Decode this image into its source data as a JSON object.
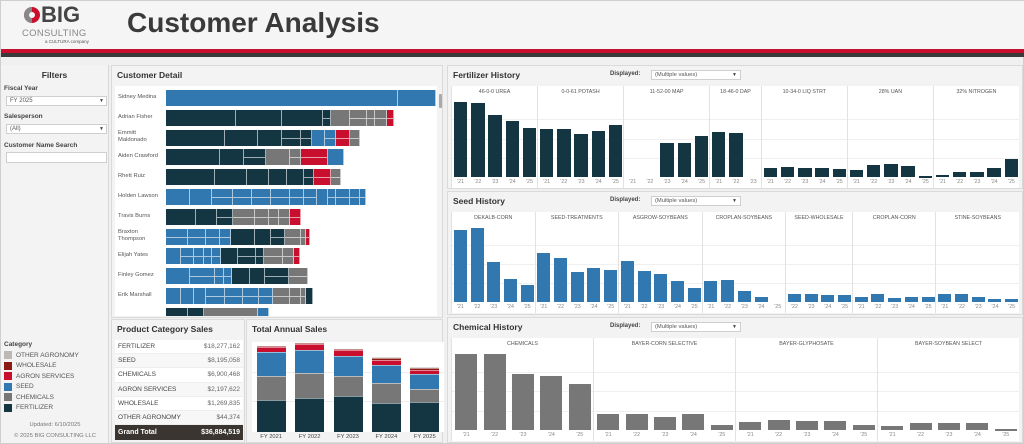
{
  "header": {
    "logo_big": "BIG",
    "logo_consulting": "CONSULTING",
    "logo_tagline": "a CULTURA company",
    "title": "Customer Analysis"
  },
  "filters": {
    "title": "Filters",
    "fiscal_year_label": "Fiscal Year",
    "fiscal_year_value": "FY 2025",
    "salesperson_label": "Salesperson",
    "salesperson_value": "(All)",
    "customer_search_label": "Customer Name Search",
    "customer_search_value": "",
    "legend_title": "Category",
    "legend": [
      {
        "label": "OTHER AGRONOMY",
        "color": "#bcb8b5"
      },
      {
        "label": "WHOLESALE",
        "color": "#8b1a14"
      },
      {
        "label": "AGRON SERVICES",
        "color": "#c8102e"
      },
      {
        "label": "SEED",
        "color": "#3178b0"
      },
      {
        "label": "CHEMICALS",
        "color": "#777777"
      },
      {
        "label": "FERTILIZER",
        "color": "#143642"
      }
    ],
    "updated": "Updated: 6/10/2025",
    "copyright": "© 2025 BIG CONSULTING LLC"
  },
  "colors": {
    "fertilizer": "#143642",
    "chemicals": "#777777",
    "seed": "#3178b0",
    "agron_services": "#c8102e",
    "wholesale": "#8b1a14",
    "other_agronomy": "#bcb8b5"
  },
  "customer_detail": {
    "title": "Customer Detail",
    "customers": [
      {
        "name": "Sidney Medina",
        "segments": [
          [
            "seed",
            0.86,
            0
          ],
          [
            "seed",
            0.14,
            0
          ]
        ]
      },
      {
        "name": "Adrian Fisher",
        "segments": [
          [
            "fertilizer",
            0.26,
            0
          ],
          [
            "fertilizer",
            0.17,
            0
          ],
          [
            "fertilizer",
            0.15,
            0
          ],
          [
            "fertilizer",
            0.03,
            1
          ],
          [
            "chemicals",
            0.07,
            0
          ],
          [
            "chemicals",
            0.065,
            1
          ],
          [
            "chemicals",
            0.03,
            1
          ],
          [
            "chemicals",
            0.045,
            1
          ],
          [
            "agron_services",
            0.025,
            1
          ]
        ]
      },
      {
        "name": "Emmitt Maldonado",
        "segments": [
          [
            "fertilizer",
            0.22,
            0
          ],
          [
            "fertilizer",
            0.12,
            0
          ],
          [
            "fertilizer",
            0.09,
            0
          ],
          [
            "fertilizer",
            0.07,
            1
          ],
          [
            "fertilizer",
            0.04,
            1
          ],
          [
            "seed",
            0.05,
            0
          ],
          [
            "seed",
            0.04,
            1
          ],
          [
            "agron_services",
            0.05,
            1
          ],
          [
            "chemicals",
            0.04,
            1
          ]
        ]
      },
      {
        "name": "Aiden Crawford",
        "segments": [
          [
            "fertilizer",
            0.2,
            0
          ],
          [
            "fertilizer",
            0.09,
            0
          ],
          [
            "fertilizer",
            0.08,
            1
          ],
          [
            "chemicals",
            0.09,
            0
          ],
          [
            "chemicals",
            0.04,
            1
          ],
          [
            "agron_services",
            0.1,
            1
          ],
          [
            "seed",
            0.06,
            0
          ]
        ]
      },
      {
        "name": "Rhett Ruiz",
        "segments": [
          [
            "fertilizer",
            0.18,
            0
          ],
          [
            "fertilizer",
            0.12,
            0
          ],
          [
            "fertilizer",
            0.08,
            0
          ],
          [
            "fertilizer",
            0.07,
            0
          ],
          [
            "fertilizer",
            0.06,
            0
          ],
          [
            "fertilizer",
            0.04,
            1
          ],
          [
            "agron_services",
            0.06,
            1
          ],
          [
            "chemicals",
            0.04,
            1
          ]
        ]
      },
      {
        "name": "Holden Lawson",
        "segments": [
          [
            "seed",
            0.09,
            0
          ],
          [
            "seed",
            0.08,
            0
          ],
          [
            "seed",
            0.08,
            1
          ],
          [
            "seed",
            0.07,
            1
          ],
          [
            "seed",
            0.07,
            1
          ],
          [
            "seed",
            0.07,
            1
          ],
          [
            "seed",
            0.05,
            1
          ],
          [
            "seed",
            0.05,
            1
          ],
          [
            "seed",
            0.04,
            0
          ],
          [
            "seed",
            0.03,
            1
          ],
          [
            "seed",
            0.05,
            1
          ],
          [
            "seed",
            0.04,
            1
          ],
          [
            "seed",
            0.02,
            1
          ]
        ]
      },
      {
        "name": "Travis Burns",
        "segments": [
          [
            "fertilizer",
            0.11,
            0
          ],
          [
            "fertilizer",
            0.08,
            0
          ],
          [
            "fertilizer",
            0.06,
            1
          ],
          [
            "chemicals",
            0.08,
            1
          ],
          [
            "chemicals",
            0.05,
            1
          ],
          [
            "chemicals",
            0.04,
            1
          ],
          [
            "chemicals",
            0.04,
            1
          ],
          [
            "agron_services",
            0.04,
            1
          ]
        ]
      },
      {
        "name": "Braxton Thompson",
        "segments": [
          [
            "seed",
            0.08,
            1
          ],
          [
            "seed",
            0.07,
            1
          ],
          [
            "seed",
            0.05,
            1
          ],
          [
            "seed",
            0.04,
            1
          ],
          [
            "fertilizer",
            0.09,
            0
          ],
          [
            "fertilizer",
            0.06,
            0
          ],
          [
            "fertilizer",
            0.05,
            1
          ],
          [
            "chemicals",
            0.06,
            1
          ],
          [
            "chemicals",
            0.02,
            1
          ],
          [
            "agron_services",
            0.015,
            1
          ]
        ]
      },
      {
        "name": "Elijah Yates",
        "segments": [
          [
            "seed",
            0.055,
            0
          ],
          [
            "seed",
            0.05,
            1
          ],
          [
            "seed",
            0.035,
            1
          ],
          [
            "seed",
            0.03,
            1
          ],
          [
            "seed",
            0.035,
            1
          ],
          [
            "fertilizer",
            0.06,
            0
          ],
          [
            "fertilizer",
            0.07,
            1
          ],
          [
            "fertilizer",
            0.03,
            1
          ],
          [
            "chemicals",
            0.07,
            1
          ],
          [
            "chemicals",
            0.04,
            1
          ],
          [
            "agron_services",
            0.02,
            1
          ]
        ]
      },
      {
        "name": "Finley Gomez",
        "segments": [
          [
            "seed",
            0.09,
            0
          ],
          [
            "seed",
            0.09,
            1
          ],
          [
            "seed",
            0.035,
            1
          ],
          [
            "seed",
            0.03,
            1
          ],
          [
            "fertilizer",
            0.065,
            0
          ],
          [
            "fertilizer",
            0.055,
            0
          ],
          [
            "fertilizer",
            0.09,
            1
          ],
          [
            "chemicals",
            0.07,
            1
          ]
        ]
      },
      {
        "name": "Erik Marshall",
        "segments": [
          [
            "seed",
            0.055,
            0
          ],
          [
            "seed",
            0.05,
            0
          ],
          [
            "seed",
            0.045,
            0
          ],
          [
            "seed",
            0.07,
            1
          ],
          [
            "seed",
            0.065,
            1
          ],
          [
            "seed",
            0.06,
            1
          ],
          [
            "seed",
            0.05,
            1
          ],
          [
            "chemicals",
            0.065,
            1
          ],
          [
            "chemicals",
            0.04,
            1
          ],
          [
            "chemicals",
            0.02,
            1
          ],
          [
            "fertilizer",
            0.025,
            0
          ]
        ]
      }
    ]
  },
  "product_category": {
    "title": "Product Category Sales",
    "rows": [
      {
        "category": "FERTILIZER",
        "value": "$18,277,162"
      },
      {
        "category": "SEED",
        "value": "$8,195,058"
      },
      {
        "category": "CHEMICALS",
        "value": "$6,900,468"
      },
      {
        "category": "AGRON SERVICES",
        "value": "$2,197,622"
      },
      {
        "category": "WHOLESALE",
        "value": "$1,269,835"
      },
      {
        "category": "OTHER AGRONOMY",
        "value": "$44,374"
      }
    ],
    "total_label": "Grand Total",
    "total_value": "$36,884,519"
  },
  "chart_data": [
    {
      "type": "bar",
      "title": "Total Annual Sales",
      "stacked": true,
      "categories": [
        "FY 2021",
        "FY 2022",
        "FY 2023",
        "FY 2024",
        "FY 2025"
      ],
      "series": [
        {
          "name": "FERTILIZER",
          "key": "fertilizer",
          "values": [
            43,
            46,
            48,
            39,
            40
          ]
        },
        {
          "name": "CHEMICALS",
          "key": "chemicals",
          "values": [
            32,
            33,
            27,
            27,
            17
          ]
        },
        {
          "name": "SEED",
          "key": "seed",
          "values": [
            32,
            31,
            27,
            24,
            20
          ]
        },
        {
          "name": "AGRON SERVICES",
          "key": "agron_services",
          "values": [
            7,
            7,
            7,
            6,
            6
          ]
        },
        {
          "name": "WHOLESALE",
          "key": "wholesale",
          "values": [
            1,
            1,
            1,
            3,
            2
          ]
        },
        {
          "name": "OTHER AGRONOMY",
          "key": "other_agronomy",
          "values": [
            0,
            0,
            0,
            1,
            1
          ]
        }
      ],
      "ylim": [
        0,
        120
      ],
      "grid": true
    },
    {
      "type": "bar",
      "title": "Fertilizer History",
      "displayed_label": "Displayed:",
      "displayed_value": "(Multiple values)",
      "color_key": "fertilizer",
      "ylim": [
        0,
        100
      ],
      "panels": [
        {
          "name": "46-0-0 UREA",
          "x": [
            "'21",
            "'22",
            "'23",
            "'24",
            "'25"
          ],
          "values": [
            98,
            96,
            81,
            73,
            63
          ]
        },
        {
          "name": "0-0-61 POTASH",
          "x": [
            "'21",
            "'22",
            "'23",
            "'24",
            "'25"
          ],
          "values": [
            62,
            62,
            56,
            60,
            68
          ]
        },
        {
          "name": "11-52-00 MAP",
          "x": [
            "'21",
            "'22",
            "'23",
            "'24",
            "'25"
          ],
          "values": [
            0,
            0,
            44,
            44,
            53
          ]
        },
        {
          "name": "18-46-0 DAP",
          "x": [
            "'21",
            "'22",
            "'23"
          ],
          "values": [
            58,
            57,
            0
          ]
        },
        {
          "name": "10-34-0 LIQ STRT",
          "x": [
            "'21",
            "'22",
            "'23",
            "'24",
            "'25"
          ],
          "values": [
            12,
            13,
            12,
            12,
            11
          ]
        },
        {
          "name": "28% UAN",
          "x": [
            "'21",
            "'22",
            "'23",
            "'24",
            "'25"
          ],
          "values": [
            9,
            16,
            17,
            14,
            1
          ]
        },
        {
          "name": "32% NITROGEN",
          "x": [
            "'21",
            "'22",
            "'23",
            "'24",
            "'25"
          ],
          "values": [
            2,
            6,
            6,
            12,
            24
          ]
        }
      ]
    },
    {
      "type": "bar",
      "title": "Seed History",
      "displayed_label": "Displayed:",
      "displayed_value": "(Multiple values)",
      "color_key": "seed",
      "ylim": [
        0,
        100
      ],
      "panels": [
        {
          "name": "DEKALB-CORN",
          "x": [
            "'21",
            "'22",
            "'23",
            "'24",
            "'25"
          ],
          "values": [
            95,
            98,
            52,
            30,
            23
          ]
        },
        {
          "name": "SEED-TREATMENTS",
          "x": [
            "'21",
            "'22",
            "'23",
            "'24",
            "'25"
          ],
          "values": [
            65,
            58,
            40,
            45,
            42
          ]
        },
        {
          "name": "ASGROW-SOYBEANS",
          "x": [
            "'21",
            "'22",
            "'23",
            "'24",
            "'25"
          ],
          "values": [
            54,
            41,
            37,
            28,
            19
          ]
        },
        {
          "name": "CROPLAN-SOYBEANS",
          "x": [
            "'21",
            "'22",
            "'23",
            "'24",
            "'25"
          ],
          "values": [
            27,
            29,
            14,
            7,
            0
          ]
        },
        {
          "name": "SEED-WHOLESALE",
          "x": [
            "'22",
            "'23",
            "'24",
            "'25"
          ],
          "values": [
            10,
            10,
            9,
            9
          ]
        },
        {
          "name": "CROPLAN-CORN",
          "x": [
            "'21",
            "'22",
            "'23",
            "'24",
            "'25"
          ],
          "values": [
            7,
            11,
            5,
            7,
            7
          ]
        },
        {
          "name": "STINE-SOYBEANS",
          "x": [
            "'21",
            "'22",
            "'23",
            "'24",
            "'25"
          ],
          "values": [
            11,
            11,
            6,
            4,
            4
          ]
        }
      ]
    },
    {
      "type": "bar",
      "title": "Chemical History",
      "displayed_label": "Displayed:",
      "displayed_value": "(Multiple values)",
      "color_key": "chemicals",
      "ylim": [
        0,
        100
      ],
      "panels": [
        {
          "name": "CHEMICALS",
          "x": [
            "'21",
            "'22",
            "'23",
            "'24",
            "'25"
          ],
          "values": [
            98,
            98,
            72,
            69,
            59
          ]
        },
        {
          "name": "BAYER-CORN SELECTIVE",
          "x": [
            "'21",
            "'22",
            "'23",
            "'24",
            "'25"
          ],
          "values": [
            20,
            21,
            17,
            21,
            7
          ]
        },
        {
          "name": "BAYER-GLYPHOSATE",
          "x": [
            "'21",
            "'22",
            "'23",
            "'24",
            "'25"
          ],
          "values": [
            10,
            13,
            12,
            11,
            7
          ]
        },
        {
          "name": "BAYER-SOYBEAN SELECT",
          "x": [
            "'21",
            "'22",
            "'23",
            "'24",
            "'25"
          ],
          "values": [
            5,
            9,
            9,
            9,
            1
          ]
        }
      ]
    }
  ]
}
